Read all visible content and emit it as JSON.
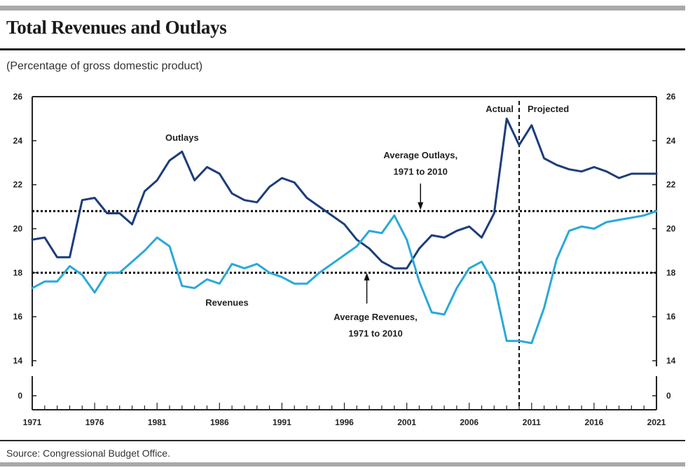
{
  "header": {
    "title": "Total Revenues and Outlays",
    "subtitle": "(Percentage of gross domestic product)"
  },
  "footer": {
    "source": "Source:    Congressional Budget Office."
  },
  "colors": {
    "outlays": "#1d3d7a",
    "revenues": "#2aa8d8",
    "axis": "#222222"
  },
  "chart_data": {
    "type": "line",
    "title": "Total Revenues and Outlays",
    "subtitle": "(Percentage of gross domestic product)",
    "xlabel": "",
    "ylabel": "",
    "xlim": [
      1971,
      2021
    ],
    "ylim": [
      14,
      26
    ],
    "y_ticks": [
      14,
      16,
      18,
      20,
      22,
      24,
      26
    ],
    "y_ticks_labels": [
      "14",
      "16",
      "18",
      "20",
      "22",
      "24",
      "26"
    ],
    "y_break_label": "0",
    "x_ticks": [
      1971,
      1976,
      1981,
      1986,
      1991,
      1996,
      2001,
      2006,
      2011,
      2016,
      2021
    ],
    "x_tick_labels": [
      "1971",
      "1976",
      "1981",
      "1986",
      "1991",
      "1996",
      "2001",
      "2006",
      "2011",
      "2016",
      "2021"
    ],
    "split_year": 2010,
    "split_labels": {
      "left": "Actual",
      "right": "Projected"
    },
    "grid": false,
    "reference_lines": [
      {
        "value": 20.8,
        "label_line1": "Average Outlays,",
        "label_line2": "1971 to 2010"
      },
      {
        "value": 18.0,
        "label_line1": "Average Revenues,",
        "label_line2": "1971 to 2010"
      }
    ],
    "series_labels": {
      "outlays": "Outlays",
      "revenues": "Revenues"
    },
    "series": [
      {
        "name": "Outlays",
        "x": [
          1971,
          1972,
          1973,
          1974,
          1975,
          1976,
          1977,
          1978,
          1979,
          1980,
          1981,
          1982,
          1983,
          1984,
          1985,
          1986,
          1987,
          1988,
          1989,
          1990,
          1991,
          1992,
          1993,
          1994,
          1995,
          1996,
          1997,
          1998,
          1999,
          2000,
          2001,
          2002,
          2003,
          2004,
          2005,
          2006,
          2007,
          2008,
          2009,
          2010,
          2011,
          2012,
          2013,
          2014,
          2015,
          2016,
          2017,
          2018,
          2019,
          2020,
          2021
        ],
        "values": [
          19.5,
          19.6,
          18.7,
          18.7,
          21.3,
          21.4,
          20.7,
          20.7,
          20.2,
          21.7,
          22.2,
          23.1,
          23.5,
          22.2,
          22.8,
          22.5,
          21.6,
          21.3,
          21.2,
          21.9,
          22.3,
          22.1,
          21.4,
          21.0,
          20.6,
          20.2,
          19.5,
          19.1,
          18.5,
          18.2,
          18.2,
          19.1,
          19.7,
          19.6,
          19.9,
          20.1,
          19.6,
          20.7,
          25.0,
          23.8,
          24.7,
          23.2,
          22.9,
          22.7,
          22.6,
          22.8,
          22.6,
          22.3,
          22.5,
          22.5,
          22.5
        ]
      },
      {
        "name": "Revenues",
        "x": [
          1971,
          1972,
          1973,
          1974,
          1975,
          1976,
          1977,
          1978,
          1979,
          1980,
          1981,
          1982,
          1983,
          1984,
          1985,
          1986,
          1987,
          1988,
          1989,
          1990,
          1991,
          1992,
          1993,
          1994,
          1995,
          1996,
          1997,
          1998,
          1999,
          2000,
          2001,
          2002,
          2003,
          2004,
          2005,
          2006,
          2007,
          2008,
          2009,
          2010,
          2011,
          2012,
          2013,
          2014,
          2015,
          2016,
          2017,
          2018,
          2019,
          2020,
          2021
        ],
        "values": [
          17.3,
          17.6,
          17.6,
          18.3,
          17.9,
          17.1,
          18.0,
          18.0,
          18.5,
          19.0,
          19.6,
          19.2,
          17.4,
          17.3,
          17.7,
          17.5,
          18.4,
          18.2,
          18.4,
          18.0,
          17.8,
          17.5,
          17.5,
          18.0,
          18.4,
          18.8,
          19.2,
          19.9,
          19.8,
          20.6,
          19.5,
          17.6,
          16.2,
          16.1,
          17.3,
          18.2,
          18.5,
          17.5,
          14.9,
          14.9,
          14.8,
          16.4,
          18.6,
          19.9,
          20.1,
          20.0,
          20.3,
          20.4,
          20.5,
          20.6,
          20.8
        ]
      }
    ]
  }
}
